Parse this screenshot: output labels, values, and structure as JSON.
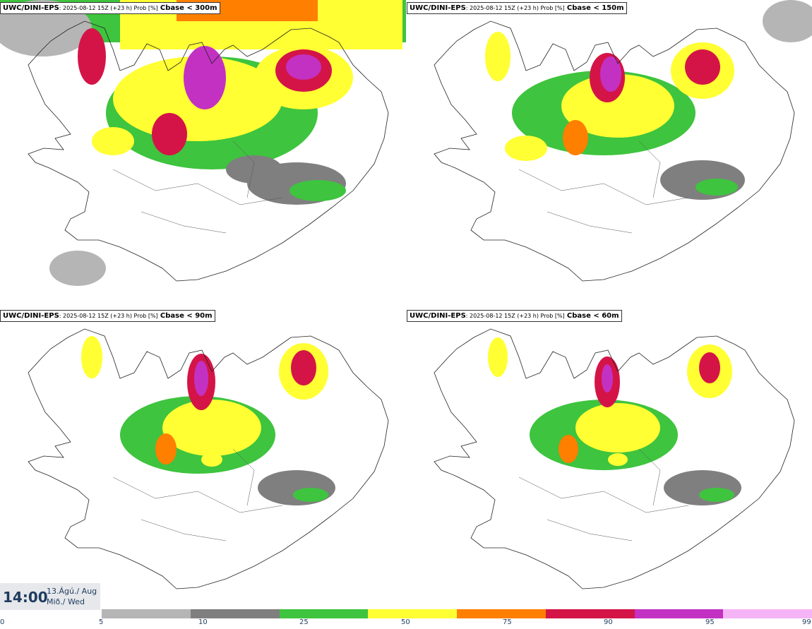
{
  "panels": [
    {
      "model": "UWC/DINI-EPS",
      "meta": ": 2025-08-12 15Z (+23 h) Prob [%]",
      "threshold": "Cbase < 300m"
    },
    {
      "model": "UWC/DINI-EPS",
      "meta": ": 2025-08-12 15Z (+23 h) Prob [%]",
      "threshold": "Cbase < 150m"
    },
    {
      "model": "UWC/DINI-EPS",
      "meta": ": 2025-08-12 15Z (+23 h) Prob [%]",
      "threshold": "Cbase < 90m"
    },
    {
      "model": "UWC/DINI-EPS",
      "meta": ": 2025-08-12 15Z (+23 h) Prob [%]",
      "threshold": "Cbase < 60m"
    }
  ],
  "valid": {
    "time": "14:00",
    "date_line1": "13.Ágú./ Aug",
    "date_line2": "Mið./ Wed"
  },
  "legend": {
    "ticks": [
      "0",
      "5",
      "10",
      "25",
      "50",
      "75",
      "90",
      "95",
      "99"
    ],
    "colors": [
      "#b5b5b5",
      "#7f7f7f",
      "#3ec43e",
      "#ffff33",
      "#ff7f00",
      "#d41447",
      "#c331c3",
      "#f5b4f5"
    ]
  }
}
